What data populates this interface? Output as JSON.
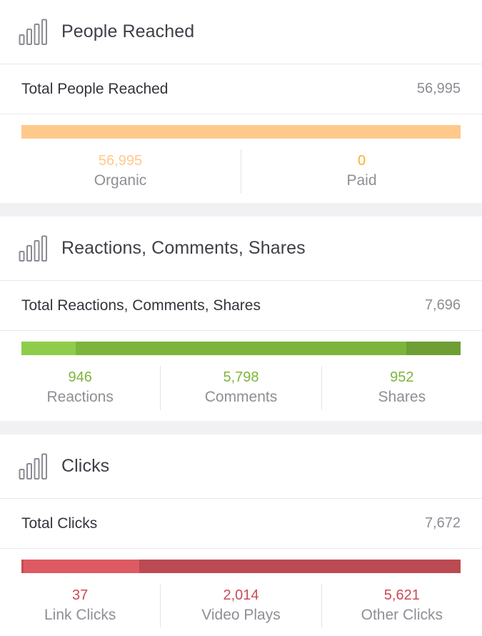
{
  "colors": {
    "organic": "#ffc98c",
    "paid": "#f2b233",
    "green": "#7db53a",
    "red": "#cc4a55"
  },
  "sections": [
    {
      "icon": "bar-chart-icon",
      "title": "People Reached",
      "total_label": "Total People Reached",
      "total_value": "56,995",
      "bar_fractions": [
        1.0,
        0.0
      ],
      "stats": [
        {
          "value": "56,995",
          "label": "Organic"
        },
        {
          "value": "0",
          "label": "Paid"
        }
      ]
    },
    {
      "icon": "bar-chart-icon",
      "title": "Reactions, Comments, Shares",
      "total_label": "Total Reactions, Comments, Shares",
      "total_value": "7,696",
      "bar_fractions": [
        0.123,
        0.753,
        0.124
      ],
      "stats": [
        {
          "value": "946",
          "label": "Reactions"
        },
        {
          "value": "5,798",
          "label": "Comments"
        },
        {
          "value": "952",
          "label": "Shares"
        }
      ]
    },
    {
      "icon": "bar-chart-icon",
      "title": "Clicks",
      "total_label": "Total Clicks",
      "total_value": "7,672",
      "bar_fractions": [
        0.005,
        0.263,
        0.732
      ],
      "stats": [
        {
          "value": "37",
          "label": "Link Clicks"
        },
        {
          "value": "2,014",
          "label": "Video Plays"
        },
        {
          "value": "5,621",
          "label": "Other Clicks"
        }
      ]
    }
  ]
}
